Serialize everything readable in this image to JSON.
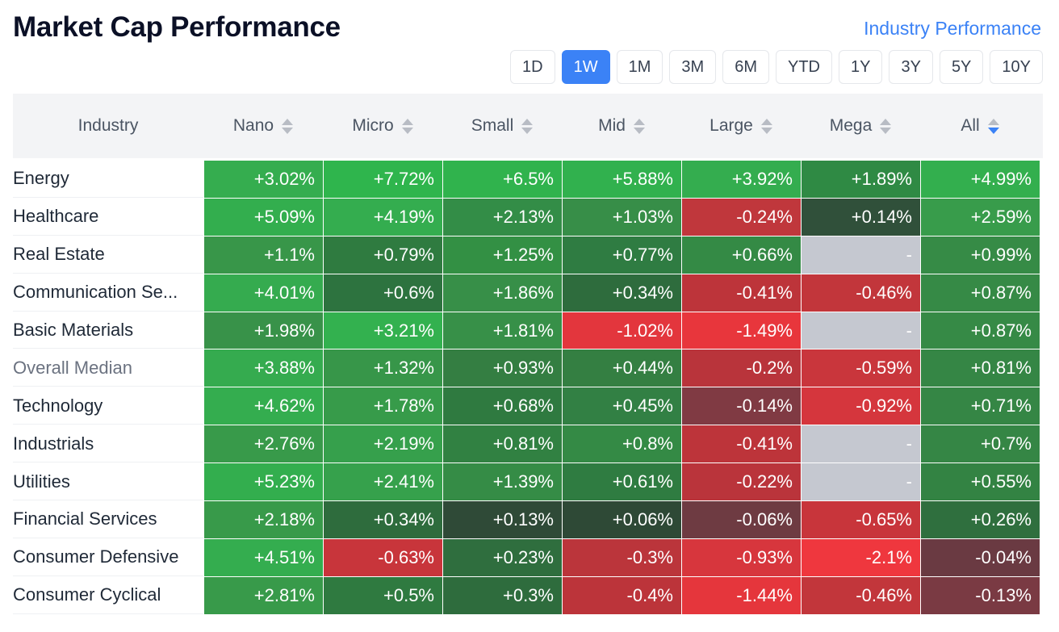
{
  "title": "Market Cap Performance",
  "link_label": "Industry Performance",
  "periods": [
    {
      "label": "1D",
      "active": false
    },
    {
      "label": "1W",
      "active": true
    },
    {
      "label": "1M",
      "active": false
    },
    {
      "label": "3M",
      "active": false
    },
    {
      "label": "6M",
      "active": false
    },
    {
      "label": "YTD",
      "active": false
    },
    {
      "label": "1Y",
      "active": false
    },
    {
      "label": "3Y",
      "active": false
    },
    {
      "label": "5Y",
      "active": false
    },
    {
      "label": "10Y",
      "active": false
    }
  ],
  "columns": {
    "industry": "Industry",
    "caps": [
      "Nano",
      "Micro",
      "Small",
      "Mid",
      "Large",
      "Mega",
      "All"
    ],
    "sorted_column": "All",
    "sort_direction": "descending"
  },
  "colors": {
    "accent": "#3b82f6",
    "na": "#c5c8d0"
  },
  "rows": [
    {
      "name": "Energy",
      "muted": false,
      "cells": [
        {
          "text": "+3.02%",
          "color": "#35ad4f"
        },
        {
          "text": "+7.72%",
          "color": "#2fb54d"
        },
        {
          "text": "+6.5%",
          "color": "#30b34d"
        },
        {
          "text": "+5.88%",
          "color": "#31b14e"
        },
        {
          "text": "+3.92%",
          "color": "#34ad4f"
        },
        {
          "text": "+1.89%",
          "color": "#2f8a44"
        },
        {
          "text": "+4.99%",
          "color": "#33af4e"
        }
      ]
    },
    {
      "name": "Healthcare",
      "muted": false,
      "cells": [
        {
          "text": "+5.09%",
          "color": "#33ae4e"
        },
        {
          "text": "+4.19%",
          "color": "#34ad4f"
        },
        {
          "text": "+2.13%",
          "color": "#338d47"
        },
        {
          "text": "+1.03%",
          "color": "#378e48"
        },
        {
          "text": "-0.24%",
          "color": "#c0373c"
        },
        {
          "text": "+0.14%",
          "color": "#30503a"
        },
        {
          "text": "+2.59%",
          "color": "#389c4b"
        }
      ]
    },
    {
      "name": "Real Estate",
      "muted": false,
      "cells": [
        {
          "text": "+1.1%",
          "color": "#389649"
        },
        {
          "text": "+0.79%",
          "color": "#2f7b40"
        },
        {
          "text": "+1.25%",
          "color": "#339044"
        },
        {
          "text": "+0.77%",
          "color": "#2f7c42"
        },
        {
          "text": "+0.66%",
          "color": "#348a45"
        },
        {
          "text": "-",
          "color": "#c5c8d0"
        },
        {
          "text": "+0.99%",
          "color": "#368b46"
        }
      ]
    },
    {
      "name": "Communication Se...",
      "muted": false,
      "cells": [
        {
          "text": "+4.01%",
          "color": "#35ab4f"
        },
        {
          "text": "+0.6%",
          "color": "#2d733f"
        },
        {
          "text": "+1.86%",
          "color": "#378f48"
        },
        {
          "text": "+0.34%",
          "color": "#2e6c3d"
        },
        {
          "text": "-0.41%",
          "color": "#bd343a"
        },
        {
          "text": "-0.46%",
          "color": "#c2363b"
        },
        {
          "text": "+0.87%",
          "color": "#368a46"
        }
      ]
    },
    {
      "name": "Basic Materials",
      "muted": false,
      "cells": [
        {
          "text": "+1.98%",
          "color": "#389249"
        },
        {
          "text": "+3.21%",
          "color": "#33b14f"
        },
        {
          "text": "+1.81%",
          "color": "#379048"
        },
        {
          "text": "-1.02%",
          "color": "#e3363d"
        },
        {
          "text": "-1.49%",
          "color": "#e8363c"
        },
        {
          "text": "-",
          "color": "#c5c8d0"
        },
        {
          "text": "+0.87%",
          "color": "#368a46"
        }
      ]
    },
    {
      "name": "Overall Median",
      "muted": true,
      "cells": [
        {
          "text": "+3.88%",
          "color": "#35ab4f"
        },
        {
          "text": "+1.32%",
          "color": "#379649"
        },
        {
          "text": "+0.93%",
          "color": "#347e42"
        },
        {
          "text": "+0.44%",
          "color": "#347f42"
        },
        {
          "text": "-0.2%",
          "color": "#b9343b"
        },
        {
          "text": "-0.59%",
          "color": "#c9363c"
        },
        {
          "text": "+0.81%",
          "color": "#358645"
        }
      ]
    },
    {
      "name": "Technology",
      "muted": false,
      "cells": [
        {
          "text": "+4.62%",
          "color": "#34ad4f"
        },
        {
          "text": "+1.78%",
          "color": "#379b4a"
        },
        {
          "text": "+0.68%",
          "color": "#2f7a40"
        },
        {
          "text": "+0.45%",
          "color": "#328044"
        },
        {
          "text": "-0.14%",
          "color": "#803a43"
        },
        {
          "text": "-0.92%",
          "color": "#d5363d"
        },
        {
          "text": "+0.71%",
          "color": "#358645"
        }
      ]
    },
    {
      "name": "Industrials",
      "muted": false,
      "cells": [
        {
          "text": "+2.76%",
          "color": "#389a4a"
        },
        {
          "text": "+2.19%",
          "color": "#36a04c"
        },
        {
          "text": "+0.81%",
          "color": "#318142"
        },
        {
          "text": "+0.8%",
          "color": "#348a45"
        },
        {
          "text": "-0.41%",
          "color": "#bd343a"
        },
        {
          "text": "-",
          "color": "#c5c8d0"
        },
        {
          "text": "+0.7%",
          "color": "#358645"
        }
      ]
    },
    {
      "name": "Utilities",
      "muted": false,
      "cells": [
        {
          "text": "+5.23%",
          "color": "#33ae4e"
        },
        {
          "text": "+2.41%",
          "color": "#36a14c"
        },
        {
          "text": "+1.39%",
          "color": "#358c46"
        },
        {
          "text": "+0.61%",
          "color": "#2f7c41"
        },
        {
          "text": "-0.22%",
          "color": "#ba343b"
        },
        {
          "text": "-",
          "color": "#c5c8d0"
        },
        {
          "text": "+0.55%",
          "color": "#338343"
        }
      ]
    },
    {
      "name": "Financial Services",
      "muted": false,
      "cells": [
        {
          "text": "+2.18%",
          "color": "#389a4a"
        },
        {
          "text": "+0.34%",
          "color": "#2e6c3d"
        },
        {
          "text": "+0.13%",
          "color": "#2f4a37"
        },
        {
          "text": "+0.06%",
          "color": "#2e4936"
        },
        {
          "text": "-0.06%",
          "color": "#6e3b42"
        },
        {
          "text": "-0.65%",
          "color": "#c8353b"
        },
        {
          "text": "+0.26%",
          "color": "#2f6f3e"
        }
      ]
    },
    {
      "name": "Consumer Defensive",
      "muted": false,
      "cells": [
        {
          "text": "+4.51%",
          "color": "#34ad4f"
        },
        {
          "text": "-0.63%",
          "color": "#c8353b"
        },
        {
          "text": "+0.23%",
          "color": "#2f6e3e"
        },
        {
          "text": "-0.3%",
          "color": "#bb353b"
        },
        {
          "text": "-0.93%",
          "color": "#d7363d"
        },
        {
          "text": "-2.1%",
          "color": "#ef373e"
        },
        {
          "text": "-0.04%",
          "color": "#6a3a42"
        }
      ]
    },
    {
      "name": "Consumer Cyclical",
      "muted": false,
      "cells": [
        {
          "text": "+2.81%",
          "color": "#389a4a"
        },
        {
          "text": "+0.5%",
          "color": "#2f7a40"
        },
        {
          "text": "+0.3%",
          "color": "#2e6c3d"
        },
        {
          "text": "-0.4%",
          "color": "#bc343a"
        },
        {
          "text": "-1.44%",
          "color": "#e5363c"
        },
        {
          "text": "-0.46%",
          "color": "#c2363b"
        },
        {
          "text": "-0.13%",
          "color": "#7a3a43"
        }
      ]
    }
  ]
}
